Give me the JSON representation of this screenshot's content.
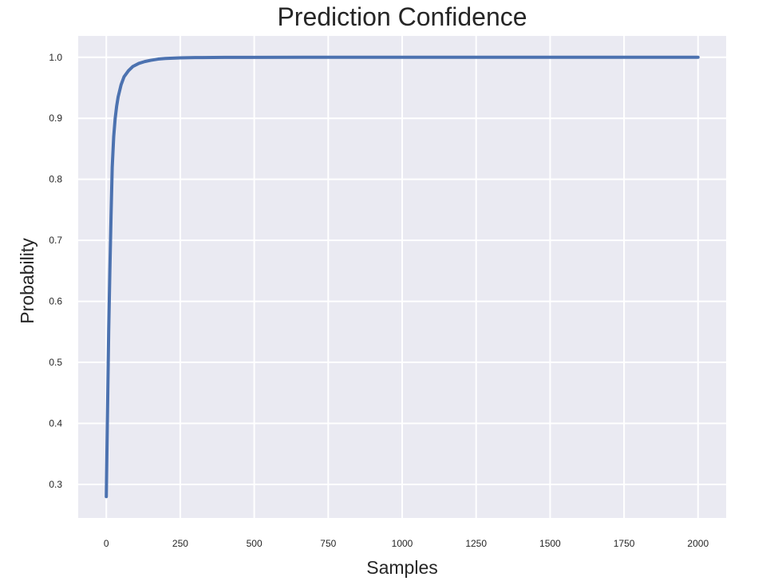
{
  "chart_data": {
    "type": "line",
    "title": "Prediction Confidence",
    "xlabel": "Samples",
    "ylabel": "Probability",
    "xlim": [
      -95,
      2095
    ],
    "ylim": [
      0.245,
      1.035
    ],
    "xticks": [
      0,
      250,
      500,
      750,
      1000,
      1250,
      1500,
      1750,
      2000
    ],
    "xtick_labels": [
      "0",
      "250",
      "500",
      "750",
      "1000",
      "1250",
      "1500",
      "1750",
      "2000"
    ],
    "yticks": [
      0.3,
      0.4,
      0.5,
      0.6,
      0.7,
      0.8,
      0.9,
      1.0
    ],
    "ytick_labels": [
      "0.3",
      "0.4",
      "0.5",
      "0.6",
      "0.7",
      "0.8",
      "0.9",
      "1.0"
    ],
    "grid": true,
    "background_color": "#eaeaf2",
    "series": [
      {
        "color": "#4c72b0",
        "x": [
          0,
          2,
          5,
          8,
          12,
          16,
          20,
          25,
          30,
          35,
          40,
          50,
          60,
          75,
          90,
          110,
          130,
          150,
          175,
          200,
          250,
          300,
          400,
          500,
          750,
          1000,
          1250,
          1500,
          1750,
          2000
        ],
        "y": [
          0.28,
          0.35,
          0.45,
          0.55,
          0.65,
          0.74,
          0.82,
          0.87,
          0.9,
          0.92,
          0.935,
          0.955,
          0.968,
          0.978,
          0.985,
          0.99,
          0.993,
          0.995,
          0.997,
          0.998,
          0.999,
          0.9995,
          0.9998,
          0.9999,
          1.0,
          1.0,
          1.0,
          1.0,
          1.0,
          1.0
        ]
      }
    ]
  }
}
